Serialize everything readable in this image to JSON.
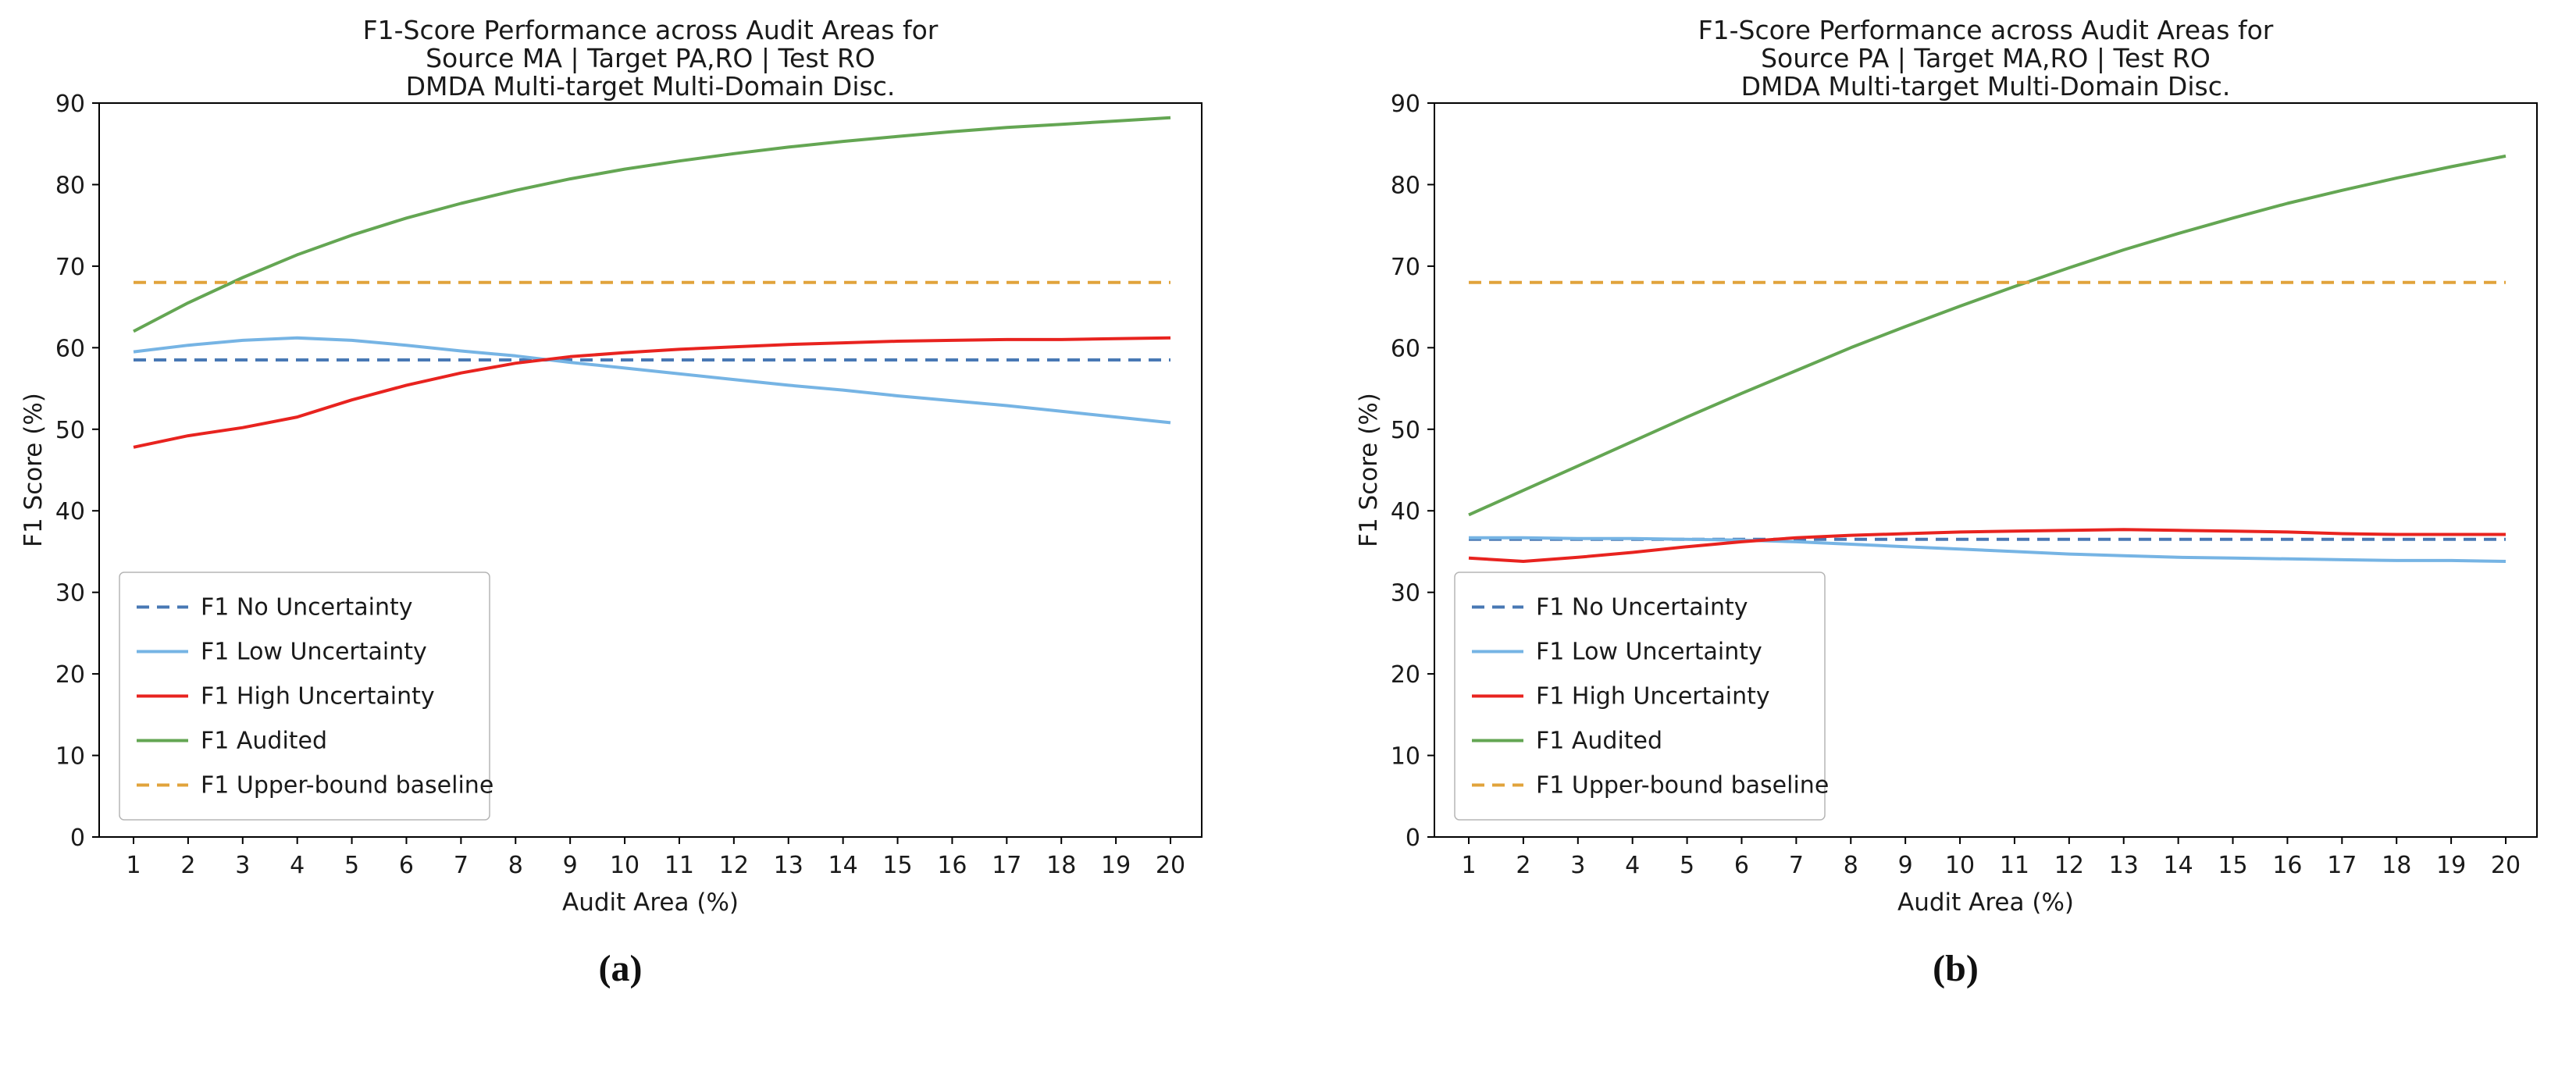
{
  "captions": [
    "(a)",
    "(b)"
  ],
  "colors": {
    "no_uncertainty": "#4878b4",
    "low_uncertainty": "#76b4e4",
    "high_uncertainty": "#e8231f",
    "audited": "#64a653",
    "upper_bound": "#e1a33b"
  },
  "chart_data": [
    {
      "type": "line",
      "title_lines": [
        "F1-Score Performance across Audit Areas for",
        "Source MA | Target PA,RO | Test RO",
        "DMDA Multi-target Multi-Domain Disc."
      ],
      "xlabel": "Audit Area (%)",
      "ylabel": "F1 Score (%)",
      "x": [
        1,
        2,
        3,
        4,
        5,
        6,
        7,
        8,
        9,
        10,
        11,
        12,
        13,
        14,
        15,
        16,
        17,
        18,
        19,
        20
      ],
      "ylim": [
        0,
        90
      ],
      "yticks": [
        0,
        10,
        20,
        30,
        40,
        50,
        60,
        70,
        80,
        90
      ],
      "grid": false,
      "legend_position": "lower left",
      "series": [
        {
          "name": "F1 No Uncertainty",
          "color": "#4878b4",
          "dash": true,
          "values": [
            58.5,
            58.5,
            58.5,
            58.5,
            58.5,
            58.5,
            58.5,
            58.5,
            58.5,
            58.5,
            58.5,
            58.5,
            58.5,
            58.5,
            58.5,
            58.5,
            58.5,
            58.5,
            58.5,
            58.5
          ]
        },
        {
          "name": "F1 Low Uncertainty",
          "color": "#76b4e4",
          "dash": false,
          "values": [
            59.5,
            60.3,
            60.9,
            61.2,
            60.9,
            60.3,
            59.6,
            59.0,
            58.2,
            57.5,
            56.8,
            56.1,
            55.4,
            54.8,
            54.1,
            53.5,
            52.9,
            52.2,
            51.5,
            50.8
          ]
        },
        {
          "name": "F1 High Uncertainty",
          "color": "#e8231f",
          "dash": false,
          "values": [
            47.8,
            49.2,
            50.2,
            51.5,
            53.6,
            55.4,
            56.9,
            58.1,
            58.9,
            59.4,
            59.8,
            60.1,
            60.4,
            60.6,
            60.8,
            60.9,
            61.0,
            61.0,
            61.1,
            61.2
          ]
        },
        {
          "name": "F1 Audited",
          "color": "#64a653",
          "dash": false,
          "values": [
            62.0,
            65.5,
            68.6,
            71.4,
            73.8,
            75.9,
            77.7,
            79.3,
            80.7,
            81.9,
            82.9,
            83.8,
            84.6,
            85.3,
            85.9,
            86.5,
            87.0,
            87.4,
            87.8,
            88.2
          ]
        },
        {
          "name": "F1 Upper-bound baseline",
          "color": "#e1a33b",
          "dash": true,
          "values": [
            68,
            68,
            68,
            68,
            68,
            68,
            68,
            68,
            68,
            68,
            68,
            68,
            68,
            68,
            68,
            68,
            68,
            68,
            68,
            68
          ]
        }
      ]
    },
    {
      "type": "line",
      "title_lines": [
        "F1-Score Performance across Audit Areas for",
        "Source PA | Target MA,RO | Test RO",
        "DMDA Multi-target Multi-Domain Disc."
      ],
      "xlabel": "Audit Area (%)",
      "ylabel": "F1 Score (%)",
      "x": [
        1,
        2,
        3,
        4,
        5,
        6,
        7,
        8,
        9,
        10,
        11,
        12,
        13,
        14,
        15,
        16,
        17,
        18,
        19,
        20
      ],
      "ylim": [
        0,
        90
      ],
      "yticks": [
        0,
        10,
        20,
        30,
        40,
        50,
        60,
        70,
        80,
        90
      ],
      "grid": false,
      "legend_position": "lower left",
      "series": [
        {
          "name": "F1 No Uncertainty",
          "color": "#4878b4",
          "dash": true,
          "values": [
            36.5,
            36.5,
            36.5,
            36.5,
            36.5,
            36.5,
            36.5,
            36.5,
            36.5,
            36.5,
            36.5,
            36.5,
            36.5,
            36.5,
            36.5,
            36.5,
            36.5,
            36.5,
            36.5,
            36.5
          ]
        },
        {
          "name": "F1 Low Uncertainty",
          "color": "#76b4e4",
          "dash": false,
          "values": [
            36.7,
            36.7,
            36.6,
            36.6,
            36.5,
            36.4,
            36.2,
            35.9,
            35.6,
            35.3,
            35.0,
            34.7,
            34.5,
            34.3,
            34.2,
            34.1,
            34.0,
            33.9,
            33.9,
            33.8
          ]
        },
        {
          "name": "F1 High Uncertainty",
          "color": "#e8231f",
          "dash": false,
          "values": [
            34.2,
            33.8,
            34.3,
            34.9,
            35.6,
            36.2,
            36.7,
            37.0,
            37.2,
            37.4,
            37.5,
            37.6,
            37.7,
            37.6,
            37.5,
            37.4,
            37.2,
            37.1,
            37.1,
            37.1
          ]
        },
        {
          "name": "F1 Audited",
          "color": "#64a653",
          "dash": false,
          "values": [
            39.5,
            42.5,
            45.5,
            48.5,
            51.5,
            54.4,
            57.2,
            60.0,
            62.6,
            65.1,
            67.5,
            69.8,
            72.0,
            74.0,
            75.9,
            77.7,
            79.3,
            80.8,
            82.2,
            83.5
          ]
        },
        {
          "name": "F1 Upper-bound baseline",
          "color": "#e1a33b",
          "dash": true,
          "values": [
            68,
            68,
            68,
            68,
            68,
            68,
            68,
            68,
            68,
            68,
            68,
            68,
            68,
            68,
            68,
            68,
            68,
            68,
            68,
            68
          ]
        }
      ]
    }
  ]
}
